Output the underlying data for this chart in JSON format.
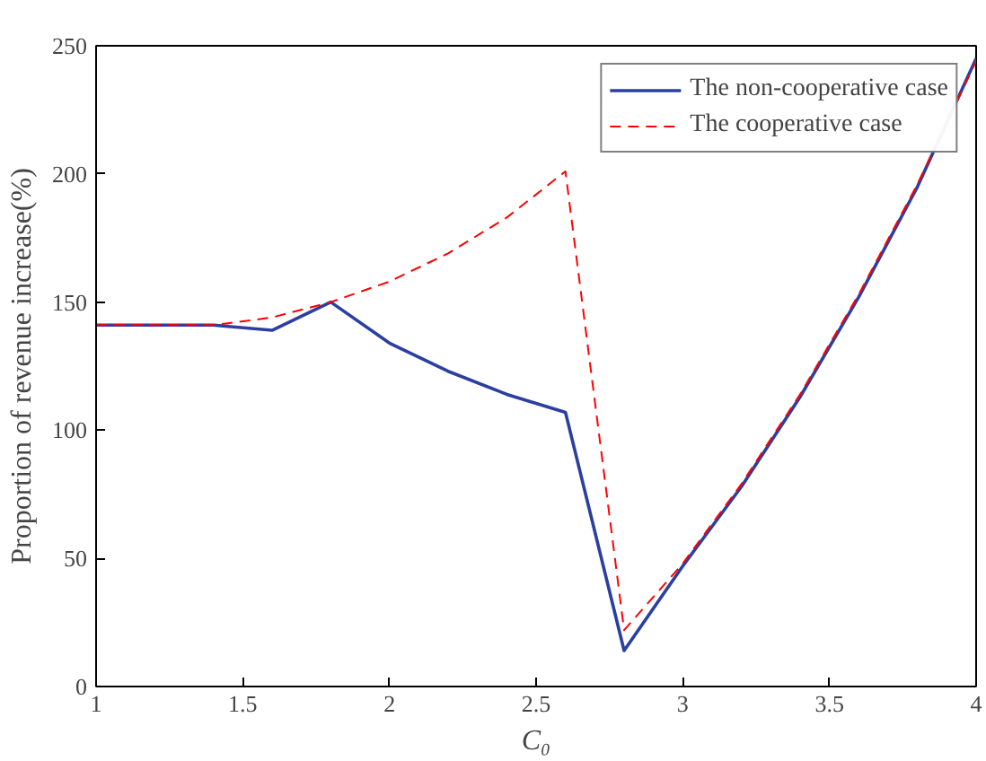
{
  "chart_data": {
    "type": "line",
    "xlabel": "C₀",
    "ylabel": "Proportion of revenue increase(%)",
    "x": [
      1,
      1.2,
      1.4,
      1.6,
      1.8,
      2.0,
      2.2,
      2.4,
      2.6,
      2.8,
      3.0,
      3.2,
      3.4,
      3.6,
      3.8,
      4.0
    ],
    "series": [
      {
        "name": "The non-cooperative case",
        "color": "#2b3fa0",
        "line_style": "solid",
        "values": [
          141,
          141,
          141,
          139,
          150,
          134,
          123,
          114,
          107,
          14,
          47,
          78,
          113,
          152,
          195,
          245
        ]
      },
      {
        "name": "The cooperative case",
        "color": "#ff0000",
        "line_style": "dashed",
        "values": [
          141,
          141,
          141,
          144,
          150,
          158,
          169,
          183,
          201,
          22,
          48,
          79,
          114,
          153,
          196,
          244
        ]
      }
    ],
    "xlim": [
      1,
      4
    ],
    "xticks": [
      1,
      1.5,
      2,
      2.5,
      3,
      3.5,
      4
    ],
    "ylim": [
      0,
      250
    ],
    "yticks": [
      0,
      50,
      100,
      150,
      200,
      250
    ],
    "grid": false,
    "legend": "top right"
  }
}
